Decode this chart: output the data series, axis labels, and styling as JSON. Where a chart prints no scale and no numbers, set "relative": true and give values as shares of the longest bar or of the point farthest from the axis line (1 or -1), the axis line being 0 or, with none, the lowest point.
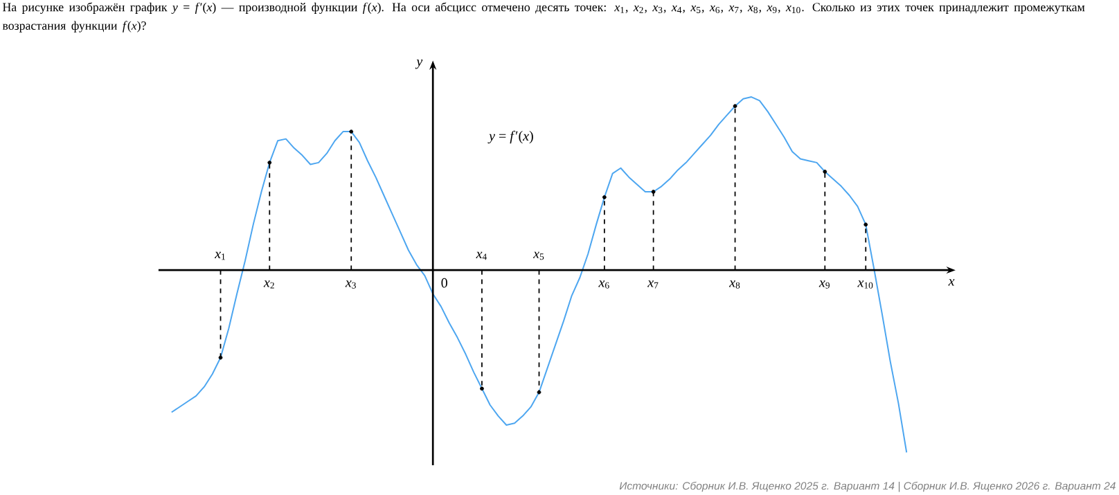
{
  "chart_data": {
    "type": "line",
    "relative": true,
    "title": "На рисунке изображён график *y* = *f*′(*x*) — производной функции *f*(*x*). На оси абсцисс отмечено десять точек: *x*$_{1}$, *x*$_{2}$, *x*$_{3}$, *x*$_{4}$, *x*$_{5}$, *x*$_{6}$, *x*$_{7}$, *x*$_{8}$, *x*$_{9}$, *x*$_{10}$. Сколько из этих точек принадлежит промежуткам возрастания функции *f*(*x*)?",
    "xlabel": "x",
    "ylabel": "y",
    "categories": [
      null,
      null,
      null,
      null,
      null,
      null,
      "*x*$_{1}$",
      null,
      null,
      null,
      null,
      null,
      "*x*$_{2}$",
      null,
      null,
      null,
      null,
      null,
      null,
      null,
      null,
      null,
      "*x*$_{3}$",
      null,
      null,
      null,
      null,
      null,
      null,
      null,
      null,
      null,
      null,
      null,
      null,
      null,
      null,
      null,
      "*x*$_{4}$",
      null,
      null,
      null,
      null,
      null,
      null,
      "*x*$_{5}$",
      null,
      null,
      null,
      null,
      null,
      null,
      null,
      "*x*$_{6}$",
      null,
      null,
      null,
      null,
      null,
      "*x*$_{7}$",
      null,
      null,
      null,
      null,
      null,
      null,
      null,
      null,
      null,
      "*x*$_{8}$",
      null,
      null,
      null,
      null,
      null,
      null,
      null,
      null,
      null,
      null,
      "*x*$_{9}$",
      null,
      null,
      null,
      null,
      "*x*$_{10}$",
      null,
      null,
      null,
      null,
      null
    ],
    "series": [
      {
        "color": "#4da6f0",
        "values": [
          -0.78,
          -0.75,
          -0.72,
          -0.69,
          -0.64,
          -0.57,
          -0.48,
          -0.32,
          -0.13,
          0.05,
          0.25,
          0.43,
          0.59,
          0.71,
          0.72,
          0.67,
          0.63,
          0.58,
          0.59,
          0.64,
          0.71,
          0.76,
          0.76,
          0.7,
          0.6,
          0.51,
          0.41,
          0.31,
          0.21,
          0.11,
          0.03,
          -0.03,
          -0.13,
          -0.2,
          -0.29,
          -0.37,
          -0.46,
          -0.56,
          -0.65,
          -0.74,
          -0.8,
          -0.85,
          -0.84,
          -0.8,
          -0.75,
          -0.67,
          -0.54,
          -0.41,
          -0.28,
          -0.14,
          -0.04,
          0.09,
          0.25,
          0.4,
          0.53,
          0.56,
          0.51,
          0.47,
          0.43,
          0.43,
          0.46,
          0.5,
          0.55,
          0.59,
          0.64,
          0.69,
          0.74,
          0.8,
          0.85,
          0.9,
          0.94,
          0.95,
          0.93,
          0.87,
          0.8,
          0.73,
          0.65,
          0.61,
          0.6,
          0.59,
          0.54,
          0.5,
          0.46,
          0.41,
          0.35,
          0.25,
          0.01,
          -0.24,
          -0.5,
          -0.73,
          -1
        ]
      },
      {
        "type": "lollipop",
        "marker": "circle",
        "line_style": "dashed",
        "color": "#000000",
        "values": [
          null,
          null,
          null,
          null,
          null,
          null,
          -0.48,
          null,
          null,
          null,
          null,
          null,
          0.59,
          null,
          null,
          null,
          null,
          null,
          null,
          null,
          null,
          null,
          0.76,
          null,
          null,
          null,
          null,
          null,
          null,
          null,
          null,
          null,
          null,
          null,
          null,
          null,
          null,
          null,
          -0.65,
          null,
          null,
          null,
          null,
          null,
          null,
          -0.67,
          null,
          null,
          null,
          null,
          null,
          null,
          null,
          0.4,
          null,
          null,
          null,
          null,
          null,
          0.43,
          null,
          null,
          null,
          null,
          null,
          null,
          null,
          null,
          null,
          0.9,
          null,
          null,
          null,
          null,
          null,
          null,
          null,
          null,
          null,
          null,
          0.54,
          null,
          null,
          null,
          null,
          0.25,
          null,
          null,
          null,
          null,
          null
        ]
      }
    ],
    "annotations": [
      "*y* = *f*′(*x*)",
      "0",
      "Источники: Сборник И.В. Ященко 2025 г. Вариант 14 | Сборник И.В. Ященко 2026 г. Вариант 24"
    ]
  }
}
